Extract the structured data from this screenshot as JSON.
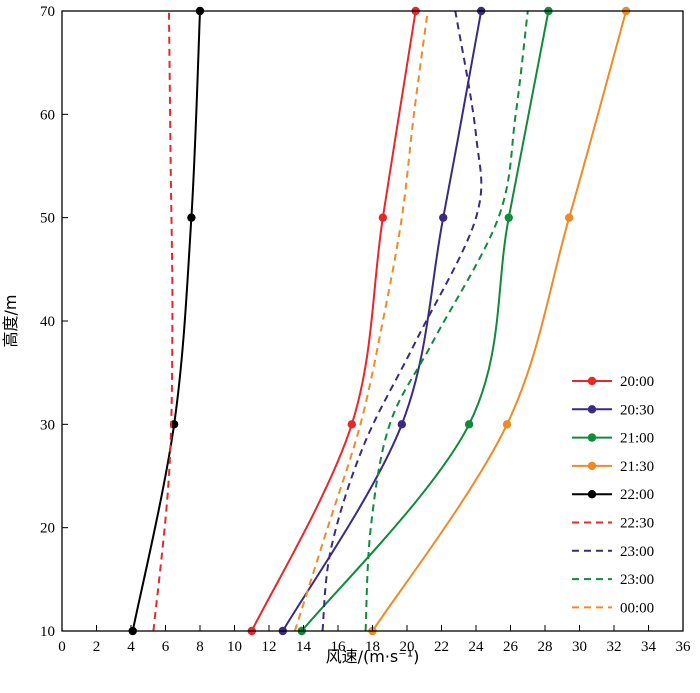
{
  "chart_data": {
    "type": "line",
    "xlabel": "风速/(m·s⁻¹)",
    "ylabel": "高度/m",
    "xlim": [
      0,
      36
    ],
    "ylim": [
      10,
      70
    ],
    "xticks": [
      0,
      2,
      4,
      6,
      8,
      10,
      12,
      14,
      16,
      18,
      20,
      22,
      24,
      26,
      28,
      30,
      32,
      34,
      36
    ],
    "yticks": [
      10,
      20,
      30,
      40,
      50,
      60,
      70
    ],
    "legend_position": "bottom-right",
    "grid": false,
    "series": [
      {
        "name": "20:00",
        "color": "#e8272a",
        "dash": false,
        "markers": true,
        "points": [
          [
            11.0,
            10
          ],
          [
            16.8,
            30
          ],
          [
            18.6,
            50
          ],
          [
            20.5,
            70
          ]
        ]
      },
      {
        "name": "20:30",
        "color": "#3b2a80",
        "dash": false,
        "markers": true,
        "points": [
          [
            12.8,
            10
          ],
          [
            19.7,
            30
          ],
          [
            22.1,
            50
          ],
          [
            24.3,
            70
          ]
        ]
      },
      {
        "name": "21:00",
        "color": "#118a3c",
        "dash": false,
        "markers": true,
        "points": [
          [
            13.9,
            10
          ],
          [
            23.6,
            30
          ],
          [
            25.9,
            50
          ],
          [
            28.2,
            70
          ]
        ]
      },
      {
        "name": "21:30",
        "color": "#f08a24",
        "dash": false,
        "markers": true,
        "points": [
          [
            18.0,
            10
          ],
          [
            25.8,
            30
          ],
          [
            29.4,
            50
          ],
          [
            32.7,
            70
          ]
        ]
      },
      {
        "name": "22:00",
        "color": "#000000",
        "dash": false,
        "markers": true,
        "points": [
          [
            4.1,
            10
          ],
          [
            6.5,
            30
          ],
          [
            7.5,
            50
          ],
          [
            8.0,
            70
          ]
        ]
      },
      {
        "name": "22:30",
        "color": "#e8272a",
        "dash": true,
        "markers": false,
        "points": [
          [
            5.3,
            10
          ],
          [
            6.2,
            25
          ],
          [
            6.4,
            40
          ],
          [
            6.3,
            55
          ],
          [
            6.2,
            70
          ]
        ]
      },
      {
        "name": "23:00",
        "color": "#3b2a80",
        "dash": true,
        "markers": false,
        "points": [
          [
            15.1,
            10
          ],
          [
            15.6,
            18
          ],
          [
            17.5,
            28
          ],
          [
            20.5,
            38
          ],
          [
            24.0,
            50
          ],
          [
            24.0,
            58
          ],
          [
            22.8,
            70
          ]
        ]
      },
      {
        "name": "23:00",
        "color": "#118a3c",
        "dash": true,
        "markers": false,
        "points": [
          [
            17.6,
            10
          ],
          [
            17.9,
            20
          ],
          [
            19.0,
            30
          ],
          [
            21.5,
            38
          ],
          [
            25.3,
            50
          ],
          [
            26.3,
            60
          ],
          [
            27.0,
            70
          ]
        ]
      },
      {
        "name": "00:00",
        "color": "#f08a24",
        "dash": true,
        "markers": false,
        "points": [
          [
            13.5,
            10
          ],
          [
            15.4,
            20
          ],
          [
            17.3,
            30
          ],
          [
            18.6,
            40
          ],
          [
            19.7,
            50
          ],
          [
            20.4,
            60
          ],
          [
            21.2,
            70
          ]
        ]
      }
    ]
  }
}
